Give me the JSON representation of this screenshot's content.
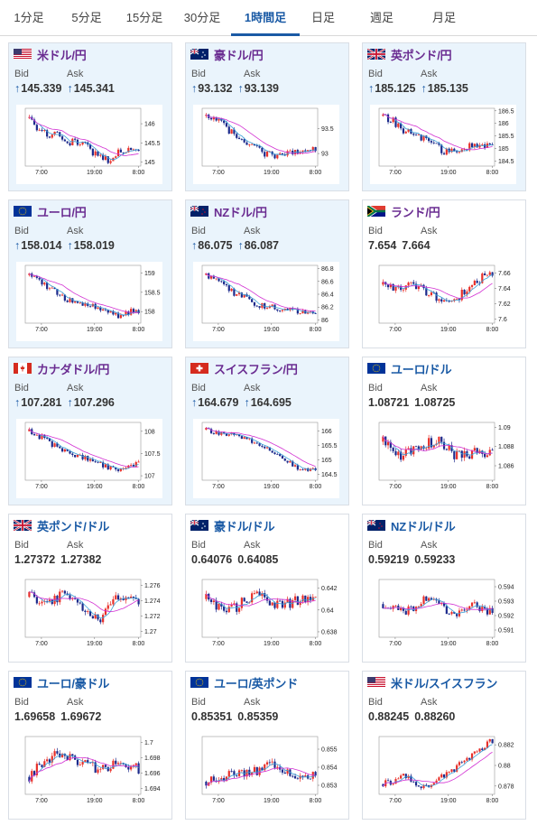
{
  "tabs": [
    {
      "label": "1分足",
      "active": false
    },
    {
      "label": "5分足",
      "active": false
    },
    {
      "label": "15分足",
      "active": false
    },
    {
      "label": "30分足",
      "active": false
    },
    {
      "label": "1時間足",
      "active": true
    },
    {
      "label": "日足",
      "active": false
    },
    {
      "label": "週足",
      "active": false
    },
    {
      "label": "月足",
      "active": false
    }
  ],
  "labels": {
    "bid": "Bid",
    "ask": "Ask",
    "up_arrow": "↑"
  },
  "colors": {
    "accent": "#1a5aa5",
    "jpy_pair": "#6a2c91",
    "highlight_bg": "#eaf4fc",
    "candle_up": "#e8302a",
    "candle_down": "#1c2a8c",
    "ma_short": "#3aa0d8",
    "ma_long": "#d230d2"
  },
  "x_ticks": [
    "7:00",
    "19:00",
    "8:00"
  ],
  "cards": [
    {
      "pair": "米ドル/円",
      "flag": "us",
      "bid": "145.339",
      "ask": "145.341",
      "arrow": true,
      "highlight": true,
      "jpy": true,
      "chart_data": {
        "type": "candlestick",
        "yticks": [
          "146",
          "145.5",
          "145"
        ],
        "ylim": [
          144.9,
          146.4
        ],
        "trend": [
          146.15,
          145.85,
          145.65,
          145.75,
          145.5,
          145.55,
          145.35,
          145.15,
          145.05,
          145.25,
          145.35,
          145.3
        ],
        "noise": 0.12
      }
    },
    {
      "pair": "豪ドル/円",
      "flag": "au",
      "bid": "93.132",
      "ask": "93.139",
      "arrow": true,
      "highlight": true,
      "jpy": true,
      "chart_data": {
        "type": "candlestick",
        "yticks": [
          "93.5",
          "93"
        ],
        "ylim": [
          92.75,
          93.9
        ],
        "trend": [
          93.75,
          93.7,
          93.5,
          93.35,
          93.25,
          93.1,
          93.0,
          92.95,
          93.0,
          93.05,
          93.1,
          93.12
        ],
        "noise": 0.09
      }
    },
    {
      "pair": "英ポンド/円",
      "flag": "gb",
      "bid": "185.125",
      "ask": "185.135",
      "arrow": true,
      "highlight": true,
      "jpy": true,
      "chart_data": {
        "type": "candlestick",
        "yticks": [
          "186.5",
          "186",
          "185.5",
          "185",
          "184.5"
        ],
        "ylim": [
          184.3,
          186.6
        ],
        "trend": [
          186.3,
          186.1,
          185.7,
          185.6,
          185.4,
          185.2,
          184.9,
          184.9,
          185.0,
          185.1,
          185.15,
          185.12
        ],
        "noise": 0.18
      }
    },
    {
      "pair": "ユーロ/円",
      "flag": "eu",
      "bid": "158.014",
      "ask": "158.019",
      "arrow": true,
      "highlight": true,
      "jpy": true,
      "chart_data": {
        "type": "candlestick",
        "yticks": [
          "159",
          "158.5",
          "158"
        ],
        "ylim": [
          157.7,
          159.2
        ],
        "trend": [
          158.95,
          158.8,
          158.6,
          158.45,
          158.3,
          158.25,
          158.2,
          158.1,
          157.95,
          157.9,
          158.0,
          158.02
        ],
        "noise": 0.1
      }
    },
    {
      "pair": "NZドル/円",
      "flag": "nz",
      "bid": "86.075",
      "ask": "86.087",
      "arrow": true,
      "highlight": true,
      "jpy": true,
      "chart_data": {
        "type": "candlestick",
        "yticks": [
          "86.8",
          "86.6",
          "86.4",
          "86.2",
          "86"
        ],
        "ylim": [
          85.95,
          86.85
        ],
        "trend": [
          86.7,
          86.65,
          86.5,
          86.4,
          86.35,
          86.25,
          86.2,
          86.2,
          86.15,
          86.15,
          86.1,
          86.08
        ],
        "noise": 0.06
      }
    },
    {
      "pair": "ランド/円",
      "flag": "za",
      "bid": "7.654",
      "ask": "7.664",
      "arrow": false,
      "highlight": false,
      "jpy": true,
      "chart_data": {
        "type": "candlestick",
        "yticks": [
          "7.66",
          "7.64",
          "7.62",
          "7.6"
        ],
        "ylim": [
          7.595,
          7.67
        ],
        "trend": [
          7.645,
          7.64,
          7.64,
          7.645,
          7.64,
          7.63,
          7.625,
          7.62,
          7.635,
          7.645,
          7.655,
          7.66
        ],
        "noise": 0.007
      }
    },
    {
      "pair": "カナダドル/円",
      "flag": "ca",
      "bid": "107.281",
      "ask": "107.296",
      "arrow": true,
      "highlight": true,
      "jpy": true,
      "chart_data": {
        "type": "candlestick",
        "yticks": [
          "108",
          "107.5",
          "107"
        ],
        "ylim": [
          106.9,
          108.2
        ],
        "trend": [
          108.0,
          107.9,
          107.75,
          107.6,
          107.5,
          107.45,
          107.35,
          107.3,
          107.2,
          107.15,
          107.25,
          107.28
        ],
        "noise": 0.09
      }
    },
    {
      "pair": "スイスフラン/円",
      "flag": "ch",
      "bid": "164.679",
      "ask": "164.695",
      "arrow": true,
      "highlight": true,
      "jpy": true,
      "chart_data": {
        "type": "candlestick",
        "yticks": [
          "166",
          "165.5",
          "165",
          "164.5"
        ],
        "ylim": [
          164.3,
          166.3
        ],
        "trend": [
          166.05,
          165.95,
          165.9,
          165.85,
          165.75,
          165.6,
          165.4,
          165.25,
          165.0,
          164.75,
          164.65,
          164.68
        ],
        "noise": 0.1
      }
    },
    {
      "pair": "ユーロ/ドル",
      "flag": "eu",
      "bid": "1.08721",
      "ask": "1.08725",
      "arrow": false,
      "highlight": false,
      "jpy": false,
      "chart_data": {
        "type": "candlestick",
        "yticks": [
          "1.09",
          "1.088",
          "1.086"
        ],
        "ylim": [
          1.0845,
          1.0905
        ],
        "trend": [
          1.0885,
          1.0875,
          1.087,
          1.0875,
          1.088,
          1.0885,
          1.0885,
          1.087,
          1.087,
          1.0875,
          1.0875,
          1.0872
        ],
        "noise": 0.0008
      }
    },
    {
      "pair": "英ポンド/ドル",
      "flag": "gb",
      "bid": "1.27372",
      "ask": "1.27382",
      "arrow": false,
      "highlight": false,
      "jpy": false,
      "chart_data": {
        "type": "candlestick",
        "yticks": [
          "1.276",
          "1.274",
          "1.272",
          "1.27"
        ],
        "ylim": [
          1.2692,
          1.2768
        ],
        "trend": [
          1.2745,
          1.274,
          1.2735,
          1.2745,
          1.2748,
          1.273,
          1.2725,
          1.2715,
          1.2735,
          1.2745,
          1.274,
          1.2737
        ],
        "noise": 0.0009
      }
    },
    {
      "pair": "豪ドル/ドル",
      "flag": "au",
      "bid": "0.64076",
      "ask": "0.64085",
      "arrow": false,
      "highlight": false,
      "jpy": false,
      "chart_data": {
        "type": "candlestick",
        "yticks": [
          "0.642",
          "0.64",
          "0.638"
        ],
        "ylim": [
          0.6375,
          0.6428
        ],
        "trend": [
          0.641,
          0.6405,
          0.64,
          0.6402,
          0.641,
          0.6415,
          0.641,
          0.6405,
          0.6405,
          0.6408,
          0.641,
          0.6408
        ],
        "noise": 0.0006
      }
    },
    {
      "pair": "NZドル/ドル",
      "flag": "nz",
      "bid": "0.59219",
      "ask": "0.59233",
      "arrow": false,
      "highlight": false,
      "jpy": false,
      "chart_data": {
        "type": "candlestick",
        "yticks": [
          "0.594",
          "0.593",
          "0.592",
          "0.591"
        ],
        "ylim": [
          0.5905,
          0.5945
        ],
        "trend": [
          0.5928,
          0.5925,
          0.5922,
          0.5925,
          0.593,
          0.5932,
          0.5927,
          0.592,
          0.5922,
          0.5928,
          0.5925,
          0.5922
        ],
        "noise": 0.0004
      }
    },
    {
      "pair": "ユーロ/豪ドル",
      "flag": "eu",
      "bid": "1.69658",
      "ask": "1.69672",
      "arrow": false,
      "highlight": false,
      "jpy": false,
      "chart_data": {
        "type": "candlestick",
        "yticks": [
          "1.7",
          "1.698",
          "1.696",
          "1.694"
        ],
        "ylim": [
          1.6932,
          1.7008
        ],
        "trend": [
          1.6955,
          1.697,
          1.698,
          1.6985,
          1.698,
          1.6975,
          1.697,
          1.6965,
          1.697,
          1.6975,
          1.697,
          1.6966
        ],
        "noise": 0.0009
      }
    },
    {
      "pair": "ユーロ/英ポンド",
      "flag": "eu",
      "bid": "0.85351",
      "ask": "0.85359",
      "arrow": false,
      "highlight": false,
      "jpy": false,
      "chart_data": {
        "type": "candlestick",
        "yticks": [
          "0.855",
          "0.854",
          "0.853"
        ],
        "ylim": [
          0.8525,
          0.8557
        ],
        "trend": [
          0.8532,
          0.8533,
          0.8535,
          0.8536,
          0.8537,
          0.8538,
          0.854,
          0.8542,
          0.8538,
          0.8536,
          0.8535,
          0.8535
        ],
        "noise": 0.00035
      }
    },
    {
      "pair": "米ドル/スイスフラン",
      "flag": "us",
      "bid": "0.88245",
      "ask": "0.88260",
      "arrow": false,
      "highlight": false,
      "jpy": false,
      "chart_data": {
        "type": "candlestick",
        "yticks": [
          "0.882",
          "0.88",
          "0.878"
        ],
        "ylim": [
          0.8772,
          0.8828
        ],
        "trend": [
          0.8782,
          0.8785,
          0.879,
          0.8785,
          0.878,
          0.878,
          0.879,
          0.8795,
          0.8805,
          0.881,
          0.8818,
          0.8824
        ],
        "noise": 0.0004
      }
    }
  ]
}
